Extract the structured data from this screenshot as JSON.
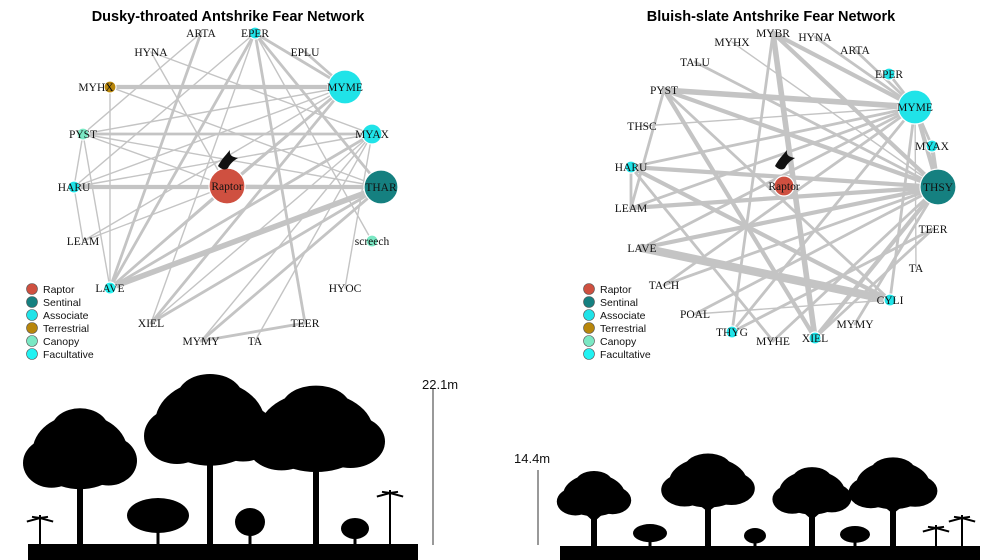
{
  "colors": {
    "Raptor": "#cf5040",
    "Sentinal": "#158080",
    "Associate": "#20e3e8",
    "Terrestrial": "#b8860b",
    "Canopy": "#7be8c4",
    "Facultative": "#22f2f2",
    "edge": "#c4c4c4"
  },
  "legend": [
    "Raptor",
    "Sentinal",
    "Associate",
    "Terrestrial",
    "Canopy",
    "Facultative"
  ],
  "networks": [
    {
      "title": "Dusky-throated Antshrike Fear Network",
      "nodes": [
        {
          "id": "EPER",
          "role": "Associate",
          "size": 1
        },
        {
          "id": "EPLU",
          "role": null,
          "size": 0
        },
        {
          "id": "MYME",
          "role": "Associate",
          "size": 3
        },
        {
          "id": "MYAX",
          "role": "Associate",
          "size": 2
        },
        {
          "id": "THAR",
          "role": "Sentinal",
          "size": 3
        },
        {
          "id": "screech",
          "role": "Canopy",
          "size": 1
        },
        {
          "id": "HYOC",
          "role": null,
          "size": 0
        },
        {
          "id": "TEER",
          "role": null,
          "size": 0
        },
        {
          "id": "TA",
          "role": null,
          "size": 0
        },
        {
          "id": "MYMY",
          "role": null,
          "size": 0
        },
        {
          "id": "XIEL",
          "role": null,
          "size": 0
        },
        {
          "id": "LAVE",
          "role": "Facultative",
          "size": 1
        },
        {
          "id": "LEAM",
          "role": null,
          "size": 0
        },
        {
          "id": "HARU",
          "role": "Associate",
          "size": 1
        },
        {
          "id": "PYST",
          "role": "Canopy",
          "size": 1
        },
        {
          "id": "MYHX",
          "role": "Terrestrial",
          "size": 1
        },
        {
          "id": "HYNA",
          "role": null,
          "size": 0
        },
        {
          "id": "ARTA",
          "role": null,
          "size": 0
        },
        {
          "id": "Raptor",
          "role": "Raptor",
          "size": 4
        }
      ],
      "edges": [
        [
          "HARU",
          "THAR",
          3
        ],
        [
          "MYHX",
          "MYME",
          3
        ],
        [
          "PYST",
          "MYAX",
          2
        ],
        [
          "EPER",
          "MYME",
          2
        ],
        [
          "EPER",
          "LAVE",
          2
        ],
        [
          "EPER",
          "TEER",
          2
        ],
        [
          "EPER",
          "THAR",
          2
        ],
        [
          "EPER",
          "screech",
          1
        ],
        [
          "EPER",
          "XIEL",
          1
        ],
        [
          "EPER",
          "HARU",
          1
        ],
        [
          "EPLU",
          "MYME",
          2
        ],
        [
          "ARTA",
          "LAVE",
          2
        ],
        [
          "MYME",
          "Raptor",
          2
        ],
        [
          "MYME",
          "XIEL",
          2
        ],
        [
          "MYME",
          "LAVE",
          1
        ],
        [
          "MYME",
          "PYST",
          1
        ],
        [
          "MYME",
          "HARU",
          1
        ],
        [
          "MYME",
          "LEAM",
          1
        ],
        [
          "MYAX",
          "LAVE",
          2
        ],
        [
          "MYAX",
          "HYOC",
          1
        ],
        [
          "MYAX",
          "TA",
          1
        ],
        [
          "MYAX",
          "MYMY",
          1
        ],
        [
          "MYAX",
          "HARU",
          1
        ],
        [
          "THAR",
          "LAVE",
          4
        ],
        [
          "THAR",
          "XIEL",
          2
        ],
        [
          "THAR",
          "PYST",
          1
        ],
        [
          "THAR",
          "MYHX",
          1
        ],
        [
          "THAR",
          "MYMY",
          2
        ],
        [
          "Raptor",
          "LAVE",
          2
        ],
        [
          "Raptor",
          "LEAM",
          1
        ],
        [
          "Raptor",
          "PYST",
          1
        ],
        [
          "Raptor",
          "HYNA",
          1
        ],
        [
          "Raptor",
          "THAR",
          2
        ],
        [
          "LEAM",
          "HARU",
          1
        ],
        [
          "HARU",
          "PYST",
          1
        ],
        [
          "PYST",
          "LAVE",
          1
        ],
        [
          "MYMY",
          "TEER",
          2
        ],
        [
          "MYHX",
          "LAVE",
          1
        ],
        [
          "HYNA",
          "MYAX",
          1
        ],
        [
          "ARTA",
          "PYST",
          1
        ],
        [
          "MYAX",
          "XIEL",
          1
        ]
      ]
    },
    {
      "title": "Bluish-slate Antshrike Fear Network",
      "nodes": [
        {
          "id": "MYBR",
          "role": null,
          "size": 0
        },
        {
          "id": "HYNA",
          "role": null,
          "size": 0
        },
        {
          "id": "ARTA",
          "role": null,
          "size": 0
        },
        {
          "id": "EPER",
          "role": "Associate",
          "size": 1
        },
        {
          "id": "MYME",
          "role": "Associate",
          "size": 3
        },
        {
          "id": "MYAX",
          "role": "Associate",
          "size": 1
        },
        {
          "id": "THSY",
          "role": "Sentinal",
          "size": 4
        },
        {
          "id": "TEER",
          "role": null,
          "size": 0
        },
        {
          "id": "TA",
          "role": null,
          "size": 0
        },
        {
          "id": "CYLI",
          "role": "Associate",
          "size": 1
        },
        {
          "id": "MYMY",
          "role": null,
          "size": 0
        },
        {
          "id": "XIEL",
          "role": "Associate",
          "size": 1
        },
        {
          "id": "MYHE",
          "role": null,
          "size": 0
        },
        {
          "id": "THYG",
          "role": "Associate",
          "size": 1
        },
        {
          "id": "POAL",
          "role": null,
          "size": 0
        },
        {
          "id": "TACH",
          "role": null,
          "size": 0
        },
        {
          "id": "LAVE",
          "role": null,
          "size": 0
        },
        {
          "id": "LEAM",
          "role": null,
          "size": 0
        },
        {
          "id": "HARU",
          "role": "Associate",
          "size": 1
        },
        {
          "id": "THSC",
          "role": null,
          "size": 0
        },
        {
          "id": "PYST",
          "role": null,
          "size": 0
        },
        {
          "id": "TALU",
          "role": null,
          "size": 0
        },
        {
          "id": "MYHX",
          "role": null,
          "size": 0
        },
        {
          "id": "Raptor",
          "role": "Raptor",
          "size": 2
        }
      ],
      "edges": [
        [
          "PYST",
          "MYME",
          4
        ],
        [
          "PYST",
          "THSY",
          3
        ],
        [
          "PYST",
          "XIEL",
          3
        ],
        [
          "PYST",
          "LEAM",
          2
        ],
        [
          "PYST",
          "CYLI",
          2
        ],
        [
          "TALU",
          "THSY",
          2
        ],
        [
          "MYBR",
          "THSY",
          3
        ],
        [
          "MYBR",
          "MYME",
          3
        ],
        [
          "MYBR",
          "XIEL",
          4
        ],
        [
          "MYBR",
          "THYG",
          2
        ],
        [
          "HYNA",
          "MYME",
          2
        ],
        [
          "ARTA",
          "MYME",
          2
        ],
        [
          "EPER",
          "MYME",
          2
        ],
        [
          "MYME",
          "THSY",
          3
        ],
        [
          "MYME",
          "LEAM",
          2
        ],
        [
          "MYME",
          "LAVE",
          2
        ],
        [
          "MYME",
          "THYG",
          2
        ],
        [
          "MYME",
          "TACH",
          2
        ],
        [
          "MYME",
          "HARU",
          2
        ],
        [
          "MYME",
          "CYLI",
          2
        ],
        [
          "MYME",
          "TA",
          1
        ],
        [
          "MYAX",
          "THSY",
          3
        ],
        [
          "MYAX",
          "MYME",
          2
        ],
        [
          "THSY",
          "LEAM",
          3
        ],
        [
          "THSY",
          "LAVE",
          3
        ],
        [
          "THSY",
          "XIEL",
          3
        ],
        [
          "THSY",
          "POAL",
          2
        ],
        [
          "THSY",
          "HARU",
          3
        ],
        [
          "THSY",
          "MYHE",
          2
        ],
        [
          "THSY",
          "MYMY",
          2
        ],
        [
          "THSY",
          "TACH",
          2
        ],
        [
          "LAVE",
          "CYLI",
          6
        ],
        [
          "HARU",
          "CYLI",
          3
        ],
        [
          "HARU",
          "MYHE",
          2
        ],
        [
          "LEAM",
          "HARU",
          2
        ],
        [
          "THSC",
          "MYME",
          1
        ],
        [
          "TEER",
          "XIEL",
          2
        ],
        [
          "TEER",
          "THYG",
          2
        ],
        [
          "POAL",
          "CYLI",
          1
        ],
        [
          "MYHX",
          "THSY",
          1
        ]
      ]
    }
  ],
  "heights": [
    "22.1m",
    "14.4m"
  ]
}
